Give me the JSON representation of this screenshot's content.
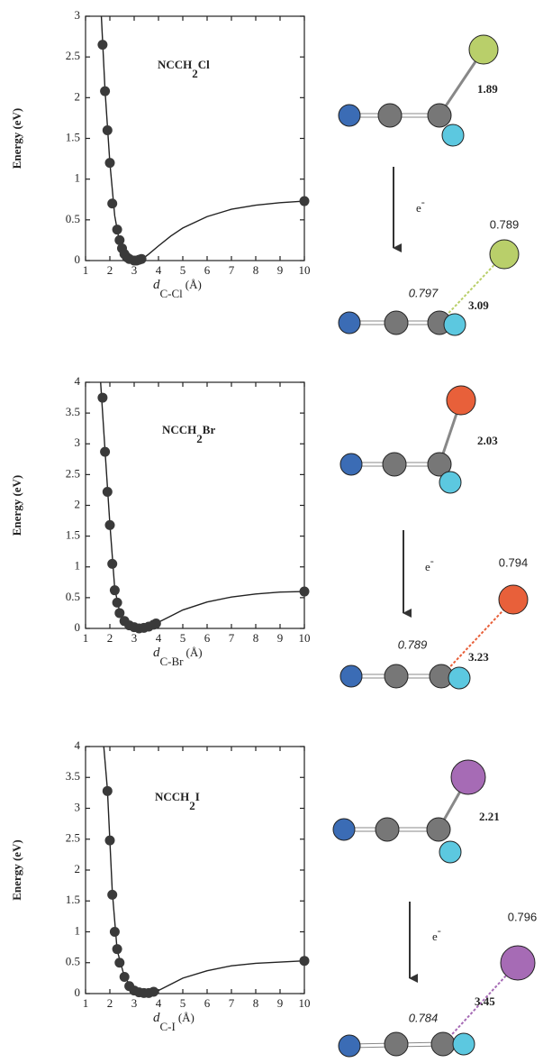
{
  "chart_data": [
    {
      "type": "scatter",
      "title": {
        "text": "NCCH",
        "subscript": "2",
        "suffix": "Cl"
      },
      "x_label": {
        "symbol": "d",
        "subscript": "C-Cl",
        "unit": "(Å)"
      },
      "y_label": "Energy (eV)",
      "xlim": [
        1,
        10
      ],
      "xticks": [
        1,
        2,
        3,
        4,
        5,
        6,
        7,
        8,
        9,
        10
      ],
      "ylim": [
        0,
        3
      ],
      "yticks": [
        0,
        0.5,
        1,
        1.5,
        2,
        2.5,
        3
      ],
      "series": [
        {
          "mode": "markers",
          "color": "#3a3a3a",
          "x": [
            1.7,
            1.8,
            1.9,
            2.0,
            2.1,
            2.3,
            2.4,
            2.5,
            2.6,
            2.7,
            2.8,
            3.0,
            3.1,
            3.2,
            3.3,
            10
          ],
          "values": [
            2.65,
            2.08,
            1.6,
            1.2,
            0.7,
            0.38,
            0.25,
            0.15,
            0.08,
            0.04,
            0.02,
            0.0,
            0.0,
            0.01,
            0.02,
            0.73
          ]
        },
        {
          "mode": "line",
          "color": "#222222",
          "x": [
            1.65,
            1.8,
            2.0,
            2.2,
            2.4,
            2.6,
            2.8,
            3.0,
            3.3,
            3.6,
            4,
            4.5,
            5,
            6,
            7,
            8,
            9,
            10
          ],
          "values": [
            3.0,
            2.1,
            1.2,
            0.55,
            0.22,
            0.07,
            0.01,
            0,
            0.01,
            0.08,
            0.18,
            0.3,
            0.4,
            0.54,
            0.63,
            0.68,
            0.71,
            0.73
          ]
        }
      ]
    },
    {
      "type": "scatter",
      "title": {
        "text": "NCCH",
        "subscript": "2",
        "suffix": "Br"
      },
      "x_label": {
        "symbol": "d",
        "subscript": "C-Br",
        "unit": "(Å)"
      },
      "y_label": "Energy (eV)",
      "xlim": [
        1,
        10
      ],
      "xticks": [
        1,
        2,
        3,
        4,
        5,
        6,
        7,
        8,
        9,
        10
      ],
      "ylim": [
        0,
        4
      ],
      "yticks": [
        0,
        0.5,
        1,
        1.5,
        2,
        2.5,
        3,
        3.5,
        4
      ],
      "series": [
        {
          "mode": "markers",
          "color": "#3a3a3a",
          "x": [
            1.7,
            1.8,
            1.9,
            2.0,
            2.1,
            2.2,
            2.3,
            2.4,
            2.6,
            2.8,
            3.0,
            3.2,
            3.4,
            3.6,
            3.8,
            3.9,
            10
          ],
          "values": [
            3.75,
            2.87,
            2.22,
            1.68,
            1.05,
            0.62,
            0.42,
            0.25,
            0.12,
            0.05,
            0.02,
            0.0,
            0.01,
            0.03,
            0.06,
            0.08,
            0.6
          ]
        },
        {
          "mode": "line",
          "color": "#222222",
          "x": [
            1.62,
            1.8,
            2.0,
            2.2,
            2.4,
            2.6,
            2.8,
            3.2,
            3.6,
            4,
            4.5,
            5,
            6,
            7,
            8,
            9,
            10
          ],
          "values": [
            4.0,
            2.9,
            1.7,
            0.65,
            0.27,
            0.11,
            0.04,
            0,
            0.03,
            0.1,
            0.2,
            0.3,
            0.43,
            0.51,
            0.56,
            0.59,
            0.6
          ]
        }
      ]
    },
    {
      "type": "scatter",
      "title": {
        "text": "NCCH",
        "subscript": "2",
        "suffix": "I"
      },
      "x_label": {
        "symbol": "d",
        "subscript": "C-I",
        "unit": "(Å)"
      },
      "y_label": "Energy (eV)",
      "xlim": [
        1,
        10
      ],
      "xticks": [
        1,
        2,
        3,
        4,
        5,
        6,
        7,
        8,
        9,
        10
      ],
      "ylim": [
        0,
        4
      ],
      "yticks": [
        0,
        0.5,
        1,
        1.5,
        2,
        2.5,
        3,
        3.5,
        4
      ],
      "series": [
        {
          "mode": "markers",
          "color": "#3a3a3a",
          "x": [
            1.9,
            2.0,
            2.1,
            2.2,
            2.3,
            2.4,
            2.6,
            2.8,
            3.0,
            3.2,
            3.4,
            3.6,
            3.8,
            10
          ],
          "values": [
            3.28,
            2.48,
            1.6,
            1.0,
            0.72,
            0.5,
            0.27,
            0.12,
            0.05,
            0.02,
            0.01,
            0.01,
            0.03,
            0.53
          ]
        },
        {
          "mode": "line",
          "color": "#222222",
          "x": [
            1.75,
            1.9,
            2.1,
            2.3,
            2.6,
            3.0,
            3.5,
            4,
            4.5,
            5,
            6,
            7,
            8,
            9,
            10
          ],
          "values": [
            4.0,
            3.3,
            1.65,
            0.7,
            0.27,
            0.05,
            0,
            0.05,
            0.15,
            0.25,
            0.37,
            0.45,
            0.49,
            0.51,
            0.53
          ]
        }
      ]
    }
  ],
  "molecules": [
    {
      "neutral_bond": "1.89",
      "electron": {
        "text": "e",
        "sup": "-"
      },
      "halogen_charge": "0.789",
      "carbon_charge": "0.797",
      "anion_bond": "3.09"
    },
    {
      "neutral_bond": "2.03",
      "electron": {
        "text": "e",
        "sup": "-"
      },
      "halogen_charge": "0.794",
      "carbon_charge": "0.789",
      "anion_bond": "3.23"
    },
    {
      "neutral_bond": "2.21",
      "electron": {
        "text": "e",
        "sup": "-"
      },
      "halogen_charge": "0.796",
      "carbon_charge": "0.784",
      "anion_bond": "3.45"
    }
  ]
}
